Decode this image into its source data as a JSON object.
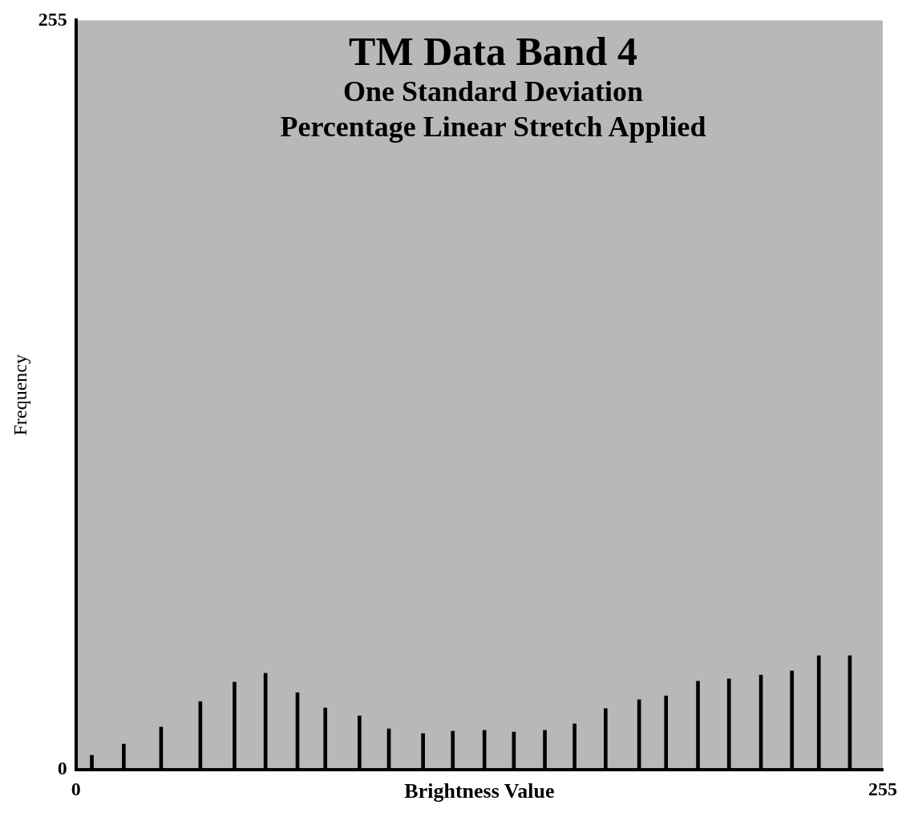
{
  "chart_data": {
    "type": "bar",
    "title": "TM Data Band 4",
    "subtitle": "One Standard Deviation\nPercentage Linear Stretch Applied",
    "xlabel": "Brightness Value",
    "ylabel": "Frequency",
    "x": [
      5.0,
      15.1,
      26.9,
      39.3,
      50.1,
      59.9,
      70.0,
      78.8,
      89.6,
      98.9,
      109.7,
      119.1,
      129.1,
      138.4,
      148.2,
      157.6,
      167.4,
      178.0,
      186.5,
      196.6,
      206.4,
      216.5,
      226.3,
      234.8,
      244.6
    ],
    "values": [
      4.9,
      8.7,
      14.5,
      23.2,
      29.8,
      32.8,
      26.2,
      21.0,
      18.3,
      13.9,
      12.3,
      13.1,
      13.4,
      12.8,
      13.4,
      15.6,
      20.8,
      23.8,
      25.1,
      30.1,
      30.9,
      32.2,
      33.6,
      38.8,
      38.8
    ],
    "color": "#000000",
    "xlim": [
      0,
      255
    ],
    "xticks": [
      0,
      255
    ],
    "ylim": [
      0,
      255
    ],
    "yticks": [
      0,
      255
    ],
    "grid": false,
    "legend": false
  }
}
